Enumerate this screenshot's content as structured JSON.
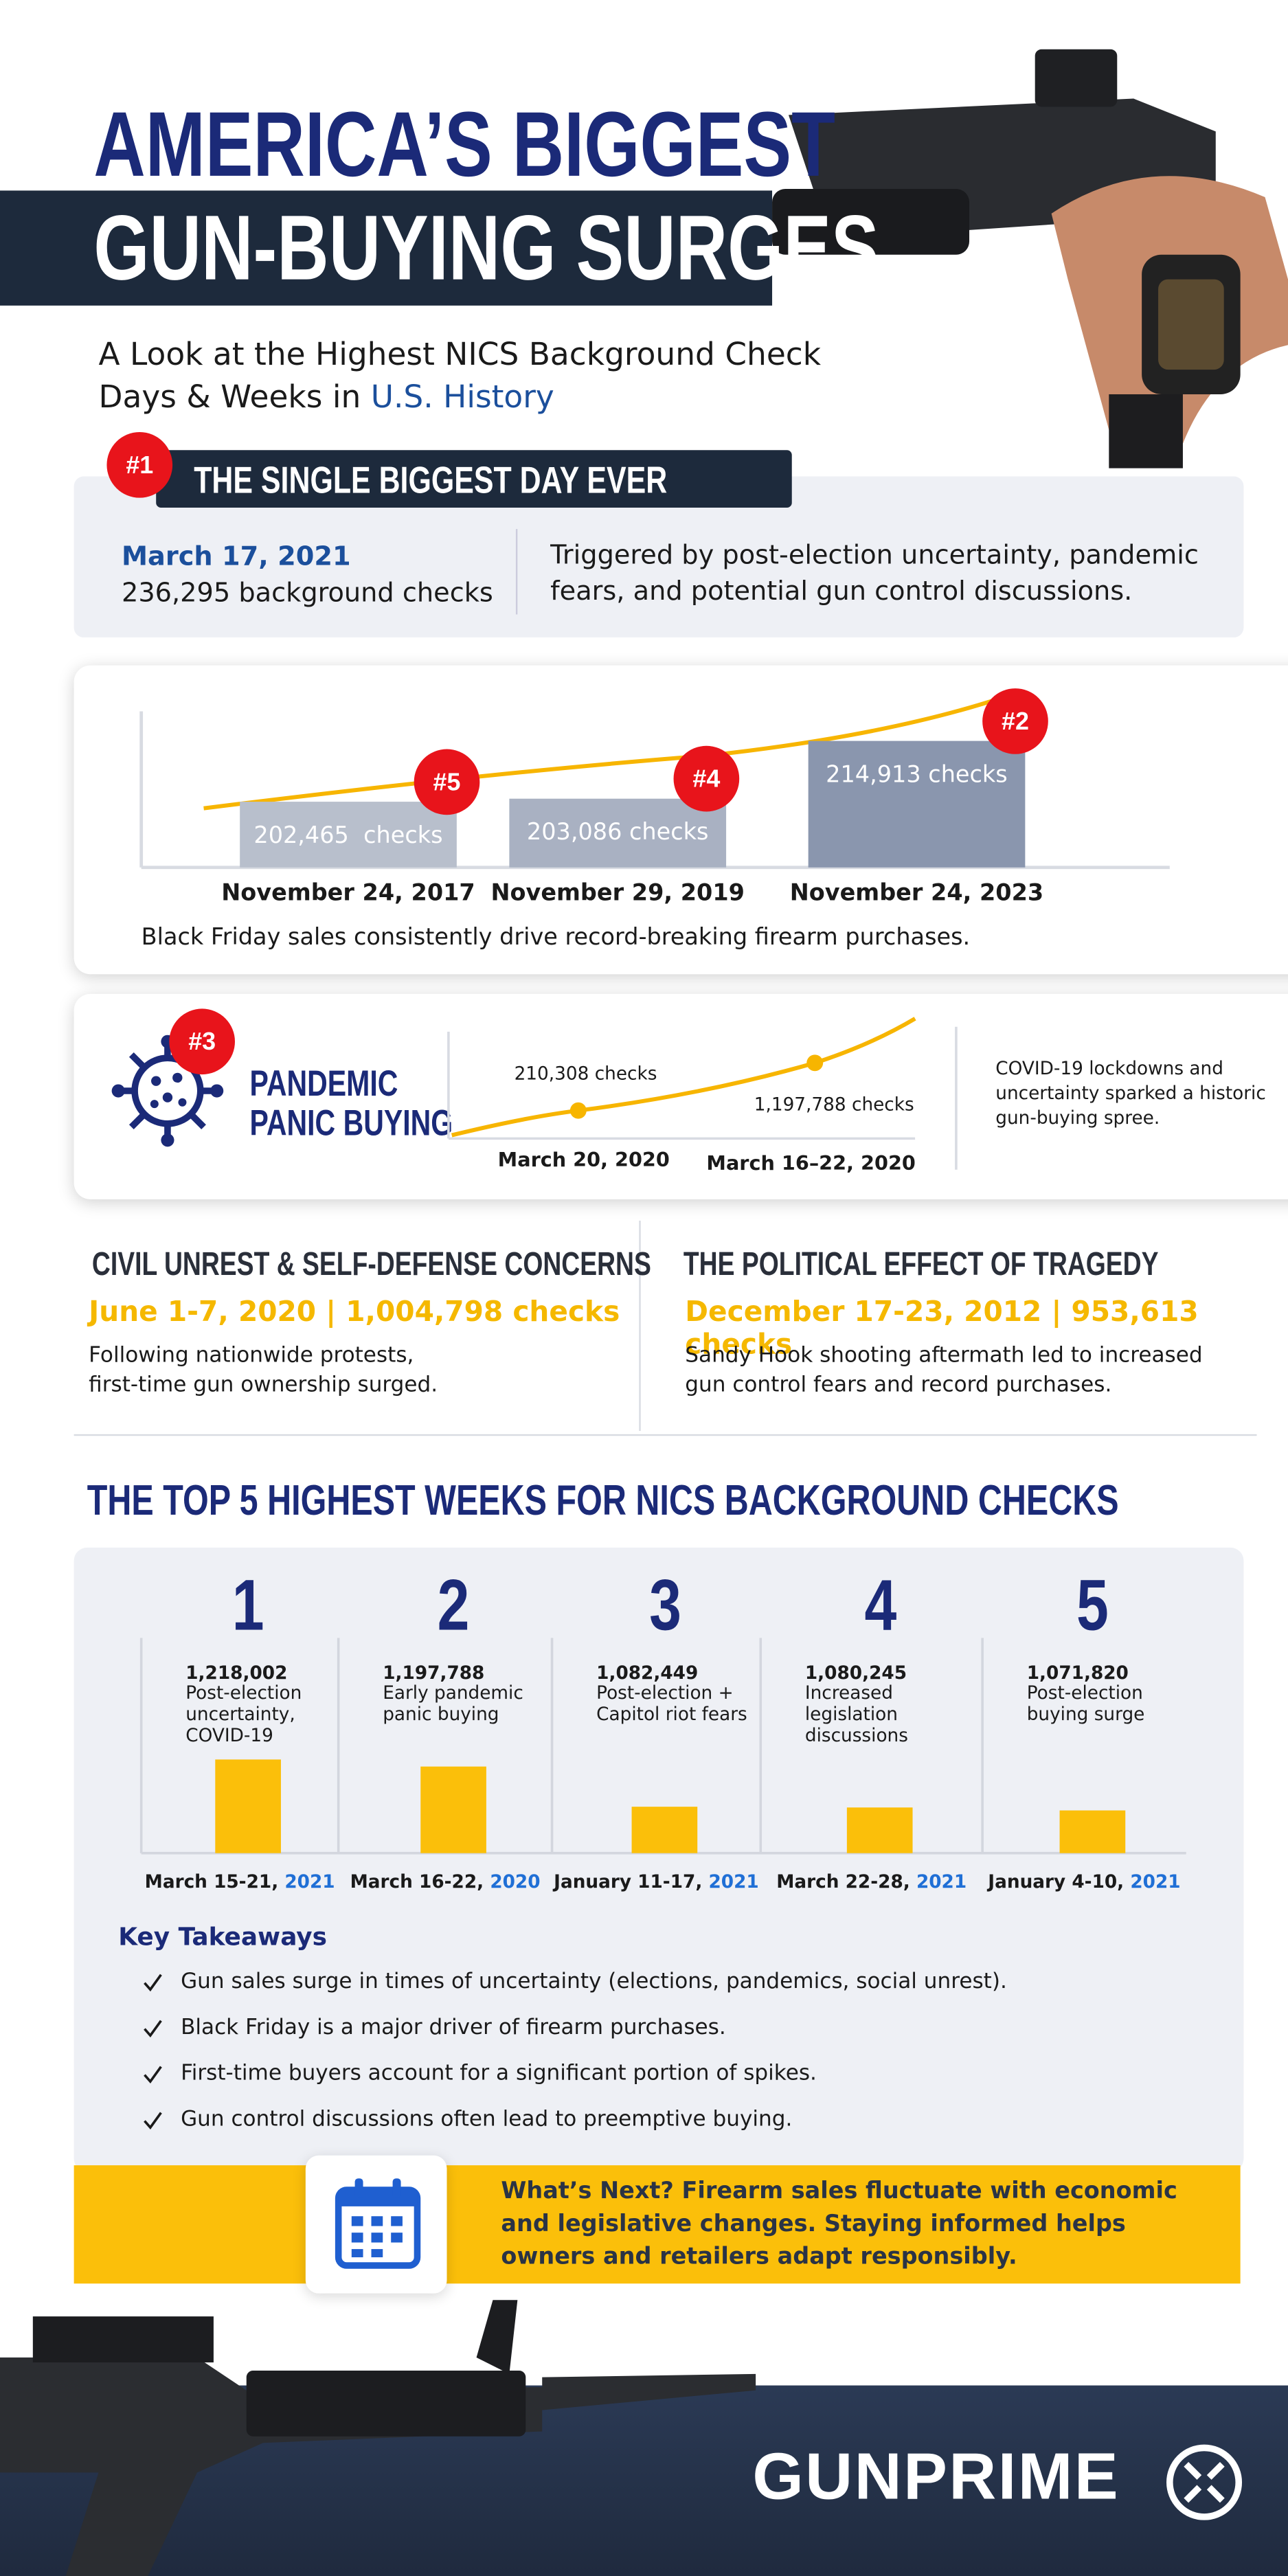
{
  "header": {
    "title_line1": "AMERICA’S BIGGEST",
    "title_line2": "GUN-BUYING SURGES",
    "subtitle": "A Look at the Highest NICS Background Check Days & Weeks in ",
    "subtitle_highlight": "U.S. History"
  },
  "biggest_day": {
    "rank": "#1",
    "heading": "THE SINGLE BIGGEST DAY EVER",
    "date": "March 17, 2021",
    "checks": "236,295 background checks",
    "description": "Triggered by post-election uncertainty, pandemic fears, and potential gun control discussions."
  },
  "black_friday": {
    "bars": [
      {
        "rank": "#5",
        "value": 202465,
        "label": "202,465  checks",
        "date": "November 24, 2017"
      },
      {
        "rank": "#4",
        "value": 203086,
        "label": "203,086 checks",
        "date": "November 29, 2019"
      },
      {
        "rank": "#2",
        "value": 214913,
        "label": "214,913 checks",
        "date": "November 24, 2023"
      }
    ],
    "caption": "Black Friday sales consistently drive record-breaking firearm purchases."
  },
  "pandemic": {
    "rank": "#3",
    "heading_line1": "PANDEMIC",
    "heading_line2": "PANIC BUYING",
    "points": [
      {
        "label": "210,308 checks",
        "date": "March 20, 2020"
      },
      {
        "label": "1,197,788 checks",
        "date": "March 16–22, 2020"
      }
    ],
    "description": "COVID-19 lockdowns and uncertainty sparked a historic gun-buying spree."
  },
  "events": [
    {
      "heading": "CIVIL UNREST & SELF-DEFENSE CONCERNS",
      "stat": "June 1-7, 2020 | 1,004,798 checks",
      "description": "Following nationwide protests, first-time gun ownership surged."
    },
    {
      "heading": "THE POLITICAL EFFECT OF TRAGEDY",
      "stat": "December 17-23, 2012 | 953,613 checks",
      "description": "Sandy Hook shooting aftermath led to increased gun control fears and record purchases."
    }
  ],
  "top_weeks": {
    "title": "THE TOP 5 HIGHEST WEEKS FOR NICS BACKGROUND CHECKS",
    "weeks": [
      {
        "rank": "1",
        "value": 1218002,
        "label": "1,218,002",
        "reason": "Post-election uncertainty, COVID-19",
        "dates": "March 15-21, ",
        "year": "2021"
      },
      {
        "rank": "2",
        "value": 1197788,
        "label": "1,197,788",
        "reason": "Early pandemic panic buying",
        "dates": "March 16-22, ",
        "year": "2020"
      },
      {
        "rank": "3",
        "value": 1082449,
        "label": "1,082,449",
        "reason": "Post-election + Capitol riot fears",
        "dates": "January 11-17, ",
        "year": "2021"
      },
      {
        "rank": "4",
        "value": 1080245,
        "label": "1,080,245",
        "reason": "Increased legislation discussions",
        "dates": "March 22-28, ",
        "year": "2021"
      },
      {
        "rank": "5",
        "value": 1071820,
        "label": "1,071,820",
        "reason": "Post-election buying surge",
        "dates": "January 4-10, ",
        "year": "2021"
      }
    ]
  },
  "takeaways": {
    "title": "Key Takeaways",
    "items": [
      "Gun sales surge in times of uncertainty (elections, pandemics, social unrest).",
      "Black Friday is a major driver of firearm purchases.",
      "First-time buyers account for a significant portion of spikes.",
      "Gun control discussions often lead to preemptive buying."
    ]
  },
  "whats_next": "What’s Next? Firearm sales fluctuate with economic and legislative changes. Staying informed helps owners and retailers adapt responsibly.",
  "brand": "GUNPRIME"
}
